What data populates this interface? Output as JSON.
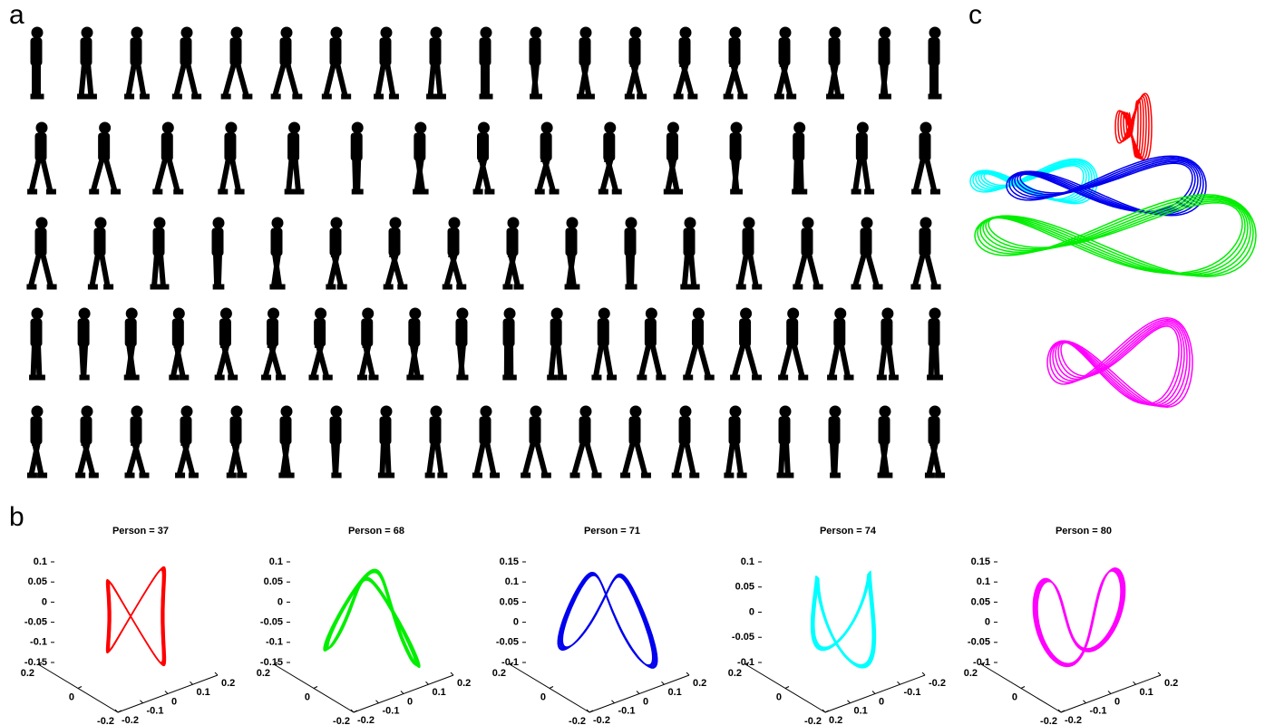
{
  "panels": {
    "a": "a",
    "b": "b",
    "c": "c"
  },
  "gait_plots": [
    {
      "title": "Person = 37",
      "color": "#ff0000",
      "zticks": [
        0.1,
        0.05,
        0,
        -0.05,
        -0.1,
        -0.15
      ],
      "left_ticks": [
        0.2,
        0,
        -0.2
      ],
      "right_ticks": [
        -0.2,
        -0.1,
        0,
        0.1,
        0.2
      ]
    },
    {
      "title": "Person = 68",
      "color": "#00ee00",
      "zticks": [
        0.1,
        0.05,
        0,
        -0.05,
        -0.1,
        -0.15
      ],
      "left_ticks": [
        0.2,
        0,
        -0.2
      ],
      "right_ticks": [
        -0.2,
        -0.1,
        0,
        0.1,
        0.2
      ]
    },
    {
      "title": "Person = 71",
      "color": "#0000ee",
      "zticks": [
        0.15,
        0.1,
        0.05,
        0,
        -0.05,
        -0.1
      ],
      "left_ticks": [
        0.2,
        0,
        -0.2
      ],
      "right_ticks": [
        -0.2,
        -0.1,
        0,
        0.1,
        0.2
      ]
    },
    {
      "title": "Person = 74",
      "color": "#00ffff",
      "zticks": [
        0.1,
        0.05,
        0,
        -0.05,
        -0.1
      ],
      "left_ticks": [
        0.2,
        0,
        -0.2
      ],
      "right_ticks": [
        0.2,
        0.1,
        0,
        -0.1,
        -0.2
      ]
    },
    {
      "title": "Person = 80",
      "color": "#ff00ff",
      "zticks": [
        0.15,
        0.1,
        0.05,
        0,
        -0.05,
        -0.1
      ],
      "left_ticks": [
        0.2,
        0,
        -0.2
      ],
      "right_ticks": [
        -0.2,
        -0.1,
        0,
        0.1,
        0.2
      ]
    }
  ]
}
